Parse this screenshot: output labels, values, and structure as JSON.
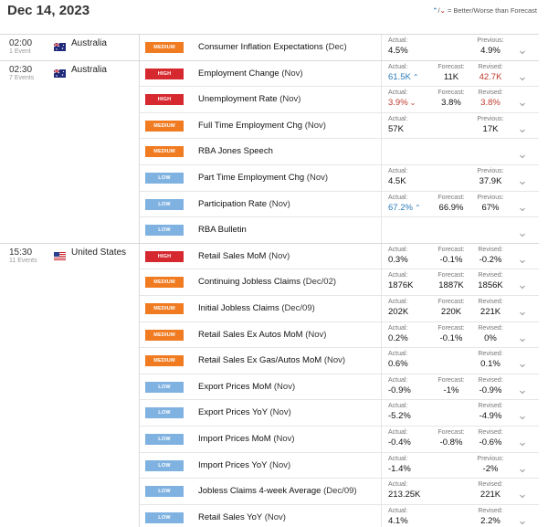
{
  "header": {
    "date": "Dec 14, 2023",
    "legend_up": "^",
    "legend_sep": "/",
    "legend_down": "v",
    "legend_text": "= Better/Worse than Forecast"
  },
  "colors": {
    "high": "#d6282f",
    "medium": "#f07b21",
    "low": "#7fb2e0",
    "better": "#2a7ab8",
    "worse": "#c0392b"
  },
  "groups": [
    {
      "time": "02:00",
      "count": "1 Event",
      "country": "Australia",
      "flag": "australia-flag",
      "events": [
        {
          "impact": "MEDIUM",
          "name": "Consumer Inflation Expectations",
          "period": "(Dec)",
          "actual_label": "Actual:",
          "actual": "4.5%",
          "forecast_label": "",
          "forecast": "",
          "prev_label": "Previous:",
          "prev": "4.9%"
        }
      ]
    },
    {
      "time": "02:30",
      "count": "7 Events",
      "country": "Australia",
      "flag": "australia-flag",
      "events": [
        {
          "impact": "HIGH",
          "name": "Employment Change",
          "period": "(Nov)",
          "actual_label": "Actual:",
          "actual": "61.5K",
          "forecast_label": "Forecast:",
          "forecast": "11K",
          "prev_label": "Revised:",
          "prev": "42.7K"
        },
        {
          "impact": "HIGH",
          "name": "Unemployment Rate",
          "period": "(Nov)",
          "actual_label": "Actual:",
          "actual": "3.9%",
          "forecast_label": "Forecast:",
          "forecast": "3.8%",
          "prev_label": "Revised:",
          "prev": "3.8%"
        },
        {
          "impact": "MEDIUM",
          "name": "Full Time Employment Chg",
          "period": "(Nov)",
          "actual_label": "Actual:",
          "actual": "57K",
          "forecast_label": "",
          "forecast": "",
          "prev_label": "Previous:",
          "prev": "17K"
        },
        {
          "impact": "MEDIUM",
          "name": "RBA Jones Speech",
          "period": "",
          "actual_label": "",
          "actual": "",
          "forecast_label": "",
          "forecast": "",
          "prev_label": "",
          "prev": ""
        },
        {
          "impact": "LOW",
          "name": "Part Time Employment Chg",
          "period": "(Nov)",
          "actual_label": "Actual:",
          "actual": "4.5K",
          "forecast_label": "",
          "forecast": "",
          "prev_label": "Previous:",
          "prev": "37.9K"
        },
        {
          "impact": "LOW",
          "name": "Participation Rate",
          "period": "(Nov)",
          "actual_label": "Actual:",
          "actual": "67.2%",
          "forecast_label": "Forecast:",
          "forecast": "66.9%",
          "prev_label": "Previous:",
          "prev": "67%"
        },
        {
          "impact": "LOW",
          "name": "RBA Bulletin",
          "period": "",
          "actual_label": "",
          "actual": "",
          "forecast_label": "",
          "forecast": "",
          "prev_label": "",
          "prev": ""
        }
      ]
    },
    {
      "time": "15:30",
      "count": "11 Events",
      "country": "United States",
      "flag": "us-flag",
      "events": [
        {
          "impact": "HIGH",
          "name": "Retail Sales MoM",
          "period": "(Nov)",
          "actual_label": "Actual:",
          "actual": "0.3%",
          "forecast_label": "Forecast:",
          "forecast": "-0.1%",
          "prev_label": "Revised:",
          "prev": "-0.2%"
        },
        {
          "impact": "MEDIUM",
          "name": "Continuing Jobless Claims",
          "period": "(Dec/02)",
          "actual_label": "Actual:",
          "actual": "1876K",
          "forecast_label": "Forecast:",
          "forecast": "1887K",
          "prev_label": "Revised:",
          "prev": "1856K"
        },
        {
          "impact": "MEDIUM",
          "name": "Initial Jobless Claims",
          "period": "(Dec/09)",
          "actual_label": "Actual:",
          "actual": "202K",
          "forecast_label": "Forecast:",
          "forecast": "220K",
          "prev_label": "Revised:",
          "prev": "221K"
        },
        {
          "impact": "MEDIUM",
          "name": "Retail Sales Ex Autos MoM",
          "period": "(Nov)",
          "actual_label": "Actual:",
          "actual": "0.2%",
          "forecast_label": "Forecast:",
          "forecast": "-0.1%",
          "prev_label": "Revised:",
          "prev": "0%"
        },
        {
          "impact": "MEDIUM",
          "name": "Retail Sales Ex Gas/Autos MoM",
          "period": "(Nov)",
          "actual_label": "Actual:",
          "actual": "0.6%",
          "forecast_label": "",
          "forecast": "",
          "prev_label": "Revised:",
          "prev": "0.1%"
        },
        {
          "impact": "LOW",
          "name": "Export Prices MoM",
          "period": "(Nov)",
          "actual_label": "Actual:",
          "actual": "-0.9%",
          "forecast_label": "Forecast:",
          "forecast": "-1%",
          "prev_label": "Revised:",
          "prev": "-0.9%"
        },
        {
          "impact": "LOW",
          "name": "Export Prices YoY",
          "period": "(Nov)",
          "actual_label": "Actual:",
          "actual": "-5.2%",
          "forecast_label": "",
          "forecast": "",
          "prev_label": "Revised:",
          "prev": "-4.9%"
        },
        {
          "impact": "LOW",
          "name": "Import Prices MoM",
          "period": "(Nov)",
          "actual_label": "Actual:",
          "actual": "-0.4%",
          "forecast_label": "Forecast:",
          "forecast": "-0.8%",
          "prev_label": "Revised:",
          "prev": "-0.6%"
        },
        {
          "impact": "LOW",
          "name": "Import Prices YoY",
          "period": "(Nov)",
          "actual_label": "Actual:",
          "actual": "-1.4%",
          "forecast_label": "",
          "forecast": "",
          "prev_label": "Previous:",
          "prev": "-2%"
        },
        {
          "impact": "LOW",
          "name": "Jobless Claims 4-week Average",
          "period": "(Dec/09)",
          "actual_label": "Actual:",
          "actual": "213.25K",
          "forecast_label": "",
          "forecast": "",
          "prev_label": "Revised:",
          "prev": "221K"
        },
        {
          "impact": "LOW",
          "name": "Retail Sales YoY",
          "period": "(Nov)",
          "actual_label": "Actual:",
          "actual": "4.1%",
          "forecast_label": "",
          "forecast": "",
          "prev_label": "Revised:",
          "prev": "2.2%"
        }
      ]
    }
  ],
  "indicators": {
    "employment_change": "better",
    "unemployment_rate": "worse",
    "employment_change_revised": "worse",
    "unemployment_rate_revised": "worse",
    "participation_rate": "better"
  }
}
